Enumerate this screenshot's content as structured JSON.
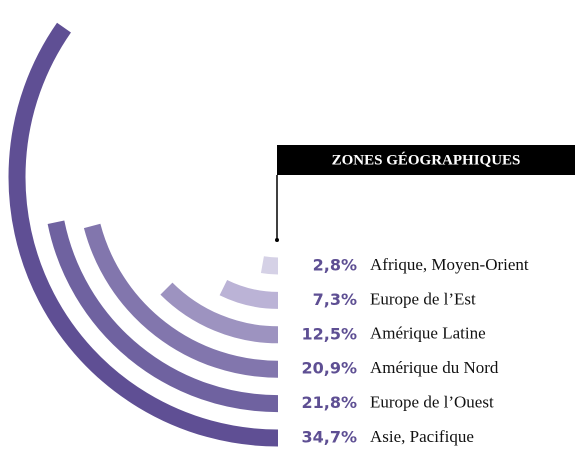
{
  "chart_data": {
    "type": "radial-bar",
    "title": "ZONES GÉOGRAPHIQUES",
    "categories": [
      "Afrique, Moyen-Orient",
      "Europe de l’Est",
      "Amérique Latine",
      "Amérique du Nord",
      "Europe de l’Ouest",
      "Asie, Pacifique"
    ],
    "values": [
      2.8,
      7.3,
      12.5,
      20.9,
      21.8,
      34.7
    ],
    "value_labels": [
      "2,8%",
      "7,3%",
      "12,5%",
      "20,9%",
      "21,8%",
      "34,7%"
    ],
    "colors": [
      "#d5d1e6",
      "#bbb3d6",
      "#9d93c0",
      "#8276ad",
      "#6f62a0",
      "#5f4f94"
    ],
    "label_color": "#5e4f93"
  }
}
